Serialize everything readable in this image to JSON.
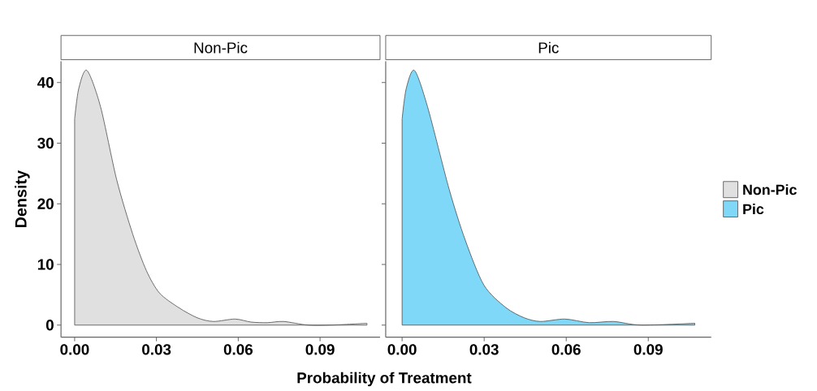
{
  "chart_data": [
    {
      "type": "area",
      "title": "Non-Pic",
      "xlabel": "Probability of Treatment",
      "ylabel": "Density",
      "x": [
        0,
        0.0015,
        0.0045,
        0.0095,
        0.0154,
        0.0213,
        0.0263,
        0.0311,
        0.0381,
        0.045,
        0.0509,
        0.0588,
        0.0647,
        0.0707,
        0.0766,
        0.0855,
        0.0943,
        0.1072
      ],
      "series": [
        {
          "name": "Non-Pic",
          "color": "#e0e0e0",
          "values": [
            34,
            39,
            42,
            36,
            24,
            15,
            9,
            5.3,
            2.9,
            1.2,
            0.6,
            1,
            0.5,
            0.4,
            0.6,
            0,
            0,
            0.3
          ]
        }
      ],
      "xlim": [
        -0.005,
        0.112
      ],
      "ylim": [
        -2,
        43.5
      ],
      "xticks": [
        {
          "value": 0,
          "label": "0.00"
        },
        {
          "value": 0.03,
          "label": "0.03"
        },
        {
          "value": 0.06,
          "label": "0.06"
        },
        {
          "value": 0.09,
          "label": "0.09"
        }
      ],
      "yticks": [
        0,
        10,
        20,
        30,
        40
      ],
      "legend": "right"
    },
    {
      "type": "area",
      "title": "Pic",
      "x": [
        0,
        0.0015,
        0.0045,
        0.0093,
        0.0172,
        0.0231,
        0.0299,
        0.0379,
        0.0447,
        0.0506,
        0.0595,
        0.0684,
        0.0773,
        0.0873,
        0.107
      ],
      "series": [
        {
          "name": "Pic",
          "color": "#7fd8f7",
          "values": [
            34,
            39,
            42,
            36,
            22.4,
            14,
            6.6,
            2.9,
            1.2,
            0.6,
            1,
            0.4,
            0.6,
            0,
            0.3
          ]
        }
      ],
      "xlim": [
        -0.006,
        0.113
      ],
      "ylim": [
        -2,
        43.5
      ],
      "yticks": [
        0,
        10,
        20,
        30,
        40
      ],
      "xticks": [
        {
          "value": 0,
          "label": "0.00"
        },
        {
          "value": 0.03,
          "label": "0.03"
        },
        {
          "value": 0.06,
          "label": "0.06"
        },
        {
          "value": 0.09,
          "label": "0.09"
        }
      ],
      "tick_labels": "x",
      "legend": "right"
    }
  ]
}
